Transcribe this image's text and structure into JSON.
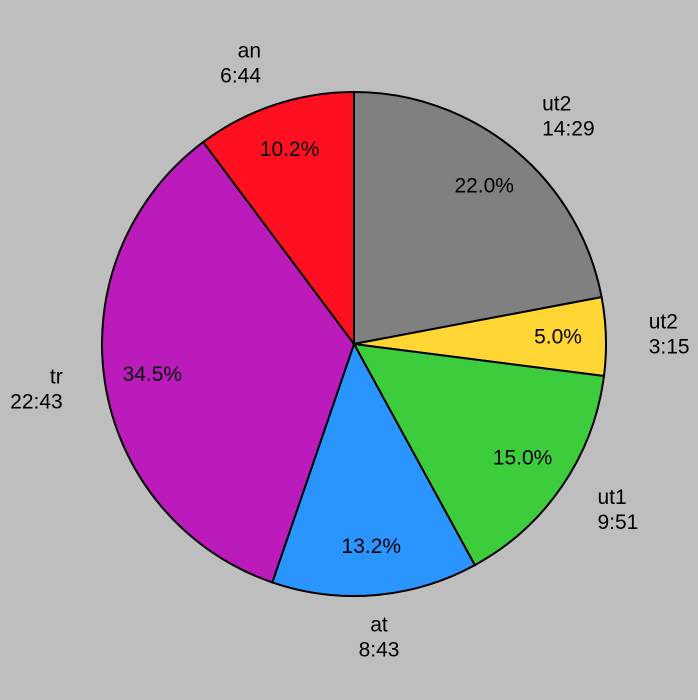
{
  "chart_data": {
    "type": "pie",
    "categories": [
      "ut2",
      "ut2",
      "ut1",
      "at",
      "tr",
      "an"
    ],
    "durations": [
      "14:29",
      "3:15",
      "9:51",
      "8:43",
      "22:43",
      "6:44"
    ],
    "values": [
      22.0,
      5.0,
      15.0,
      13.2,
      34.5,
      10.2
    ],
    "value_labels": [
      "22.0%",
      "5.0%",
      "15.0%",
      "13.2%",
      "34.5%",
      "10.2%"
    ],
    "colors": [
      "#808080",
      "#ffd633",
      "#3ccc3c",
      "#2b95ff",
      "#bb1bbb",
      "#ff1020"
    ]
  }
}
